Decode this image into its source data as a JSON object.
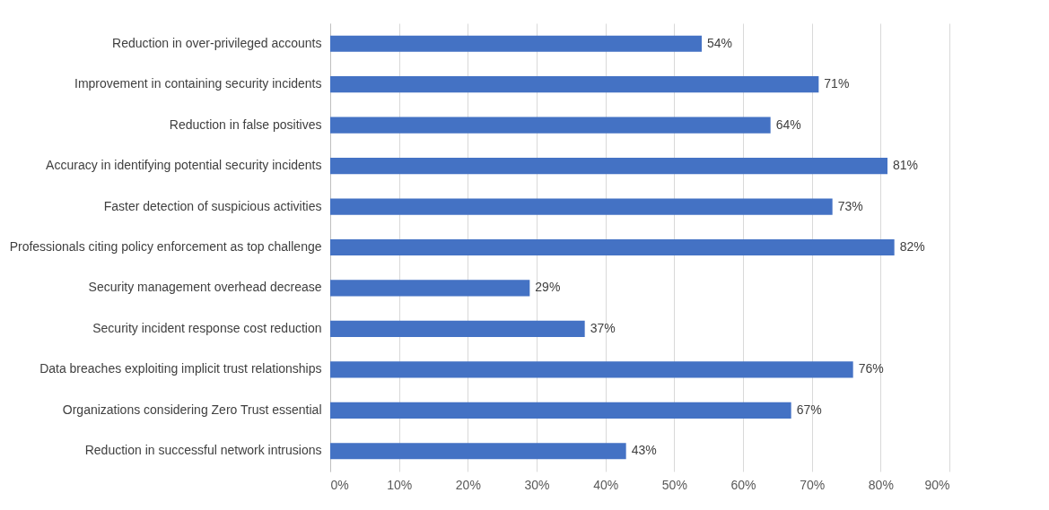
{
  "chart_data": {
    "type": "bar",
    "orientation": "horizontal",
    "categories": [
      "Reduction in over-privileged accounts",
      "Improvement in containing security incidents",
      "Reduction in false positives",
      "Accuracy in identifying potential security incidents",
      "Faster detection of suspicious activities",
      "Professionals citing policy enforcement as top challenge",
      "Security management overhead decrease",
      "Security incident response cost reduction",
      "Data breaches exploiting implicit trust relationships",
      "Organizations considering Zero Trust essential",
      "Reduction in successful network intrusions"
    ],
    "values": [
      54,
      71,
      64,
      81,
      73,
      82,
      29,
      37,
      76,
      67,
      43
    ],
    "value_labels": [
      "54%",
      "71%",
      "64%",
      "81%",
      "73%",
      "82%",
      "29%",
      "37%",
      "76%",
      "67%",
      "43%"
    ],
    "color": "#4472c4",
    "xlim": [
      0,
      90
    ],
    "xticks": [
      {
        "value": 0,
        "label": "0%"
      },
      {
        "value": 10,
        "label": "10%"
      },
      {
        "value": 20,
        "label": "20%"
      },
      {
        "value": 30,
        "label": "30%"
      },
      {
        "value": 40,
        "label": "40%"
      },
      {
        "value": 50,
        "label": "50%"
      },
      {
        "value": 60,
        "label": "60%"
      },
      {
        "value": 70,
        "label": "70%"
      },
      {
        "value": 80,
        "label": "80%"
      },
      {
        "value": 90,
        "label": "90%"
      }
    ],
    "grid": "x"
  }
}
